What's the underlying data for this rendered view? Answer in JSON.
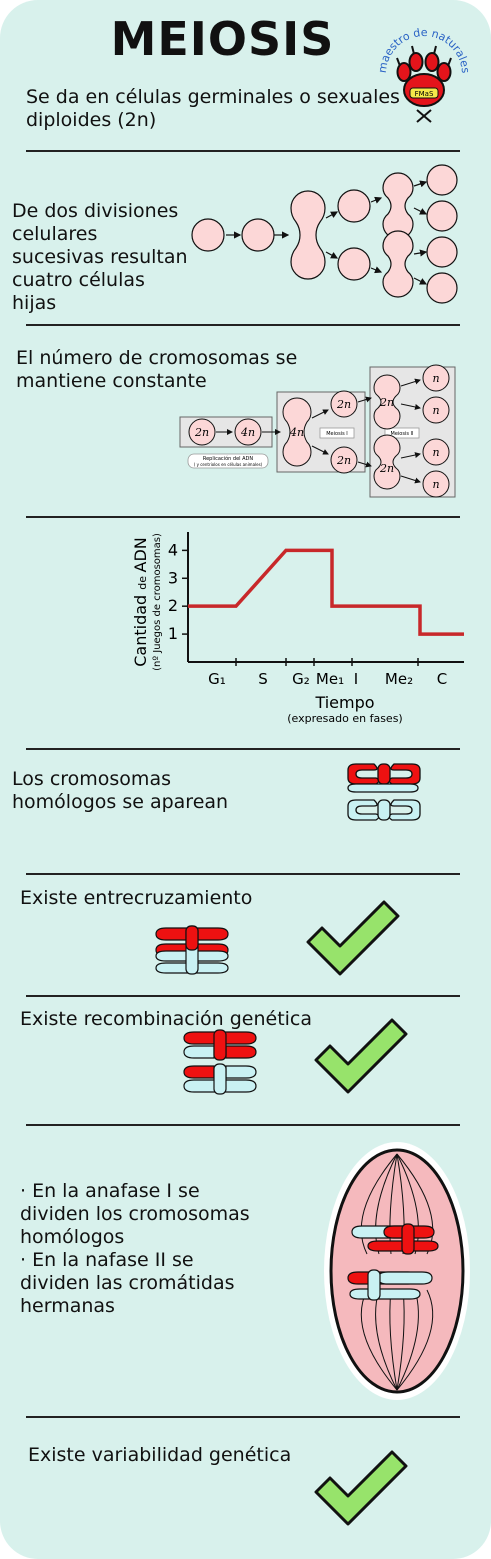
{
  "title": "MEIOSIS",
  "logo": {
    "arc_text": "maestro de naturales",
    "badge_text": "FMaS"
  },
  "s1": {
    "text": "Se da en células germinales o sexuales diploides (2n)"
  },
  "s2": {
    "text": "De dos divisiones celulares sucesivas resultan cuatro células hijas"
  },
  "s3": {
    "text": "El número de cromosomas se mantiene constante",
    "labels": {
      "two_n": "2n",
      "four_n": "4n",
      "n": "n"
    },
    "replicacion": "Replicación del ADN",
    "replicacion_sub": "( y centriolos en células animales)",
    "meiosis1": "Meiosis I",
    "meiosis2": "Meiosis II"
  },
  "chart_data": {
    "type": "line",
    "ylabel_main": "Cantidad",
    "ylabel_de": "de",
    "ylabel_adn": "ADN",
    "ylabel_sub": "(nº Juegos de cromosomas)",
    "xlabel": "Tiempo",
    "xlabel_sub": "(expresado en fases)",
    "yticks": [
      "1",
      "2",
      "3",
      "4"
    ],
    "ylim": [
      0,
      4.3
    ],
    "phases": [
      "G1",
      "S",
      "G2",
      "Me1",
      "I",
      "Me2",
      "C"
    ],
    "phase_labels": {
      "G1": "G₁",
      "S": "S",
      "G2": "G₂",
      "Me1": "Me₁",
      "I": "I",
      "Me2": "Me₂",
      "C": "C"
    },
    "points": [
      [
        0,
        2
      ],
      [
        1,
        2
      ],
      [
        2,
        4
      ],
      [
        3,
        4
      ],
      [
        3,
        2
      ],
      [
        5,
        2
      ],
      [
        5,
        1
      ],
      [
        6,
        1
      ]
    ],
    "line_color": "#c8282a"
  },
  "s4": {
    "text": "Los cromosomas homólogos se aparean"
  },
  "s5": {
    "text": "Existe entrecruzamiento"
  },
  "s6": {
    "text": "Existe recombinación genética"
  },
  "s7": {
    "lines": [
      "· En la anafase I  se",
      "dividen los cromosomas",
      "homólogos",
      "· En la nafase II se",
      "dividen las cromátidas",
      "hermanas"
    ]
  },
  "s8": {
    "text": "Existe variabilidad genética"
  },
  "colors": {
    "background": "#d8f1ec",
    "cell_fill": "#fcd7d7",
    "chrom_red": "#ee1111",
    "chrom_blue": "#c9f1f3",
    "check": "#97e36b",
    "graph": "#c8282a"
  }
}
